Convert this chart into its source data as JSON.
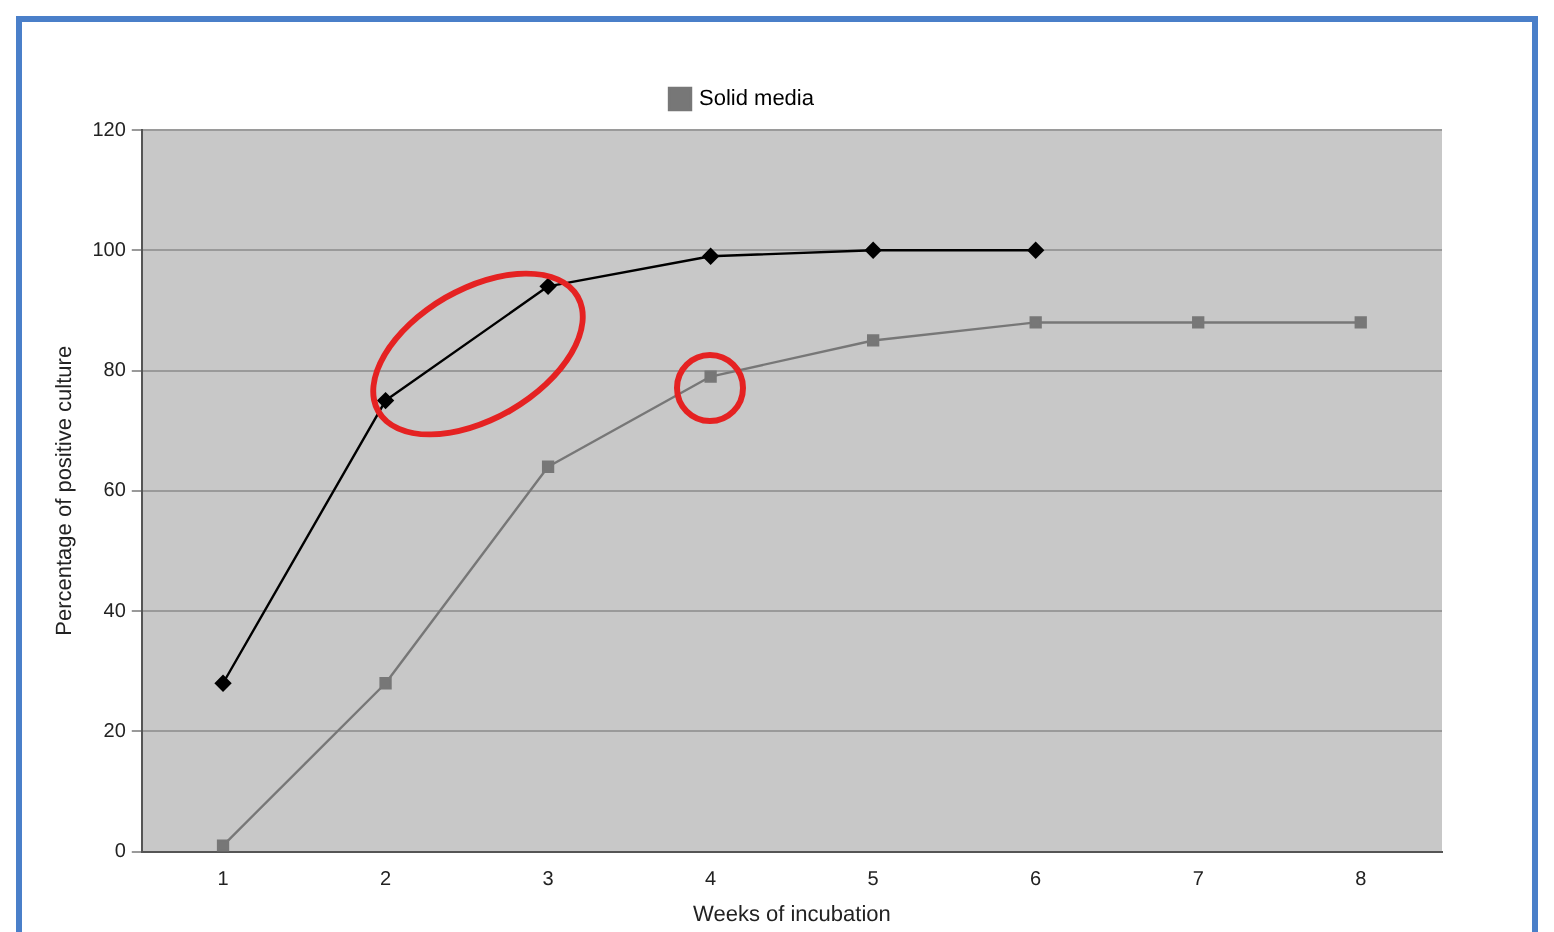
{
  "chart_data": {
    "type": "line",
    "xlabel": "Weeks of incubation",
    "ylabel": "Percentage of positive culture",
    "categories": [
      "1",
      "2",
      "3",
      "4",
      "5",
      "6",
      "7",
      "8"
    ],
    "series": [
      {
        "color": "#000000",
        "marker": "diamond",
        "values": [
          28,
          75,
          94,
          99,
          100,
          100,
          null,
          null
        ]
      },
      {
        "name": "Solid media",
        "color": "#777777",
        "marker": "square",
        "values": [
          1,
          28,
          64,
          79,
          85,
          88,
          88,
          88
        ]
      }
    ],
    "ylim": [
      0,
      120
    ],
    "yticks": [
      0,
      20,
      40,
      60,
      80,
      100,
      120
    ],
    "grid": "y",
    "legend": "top"
  }
}
